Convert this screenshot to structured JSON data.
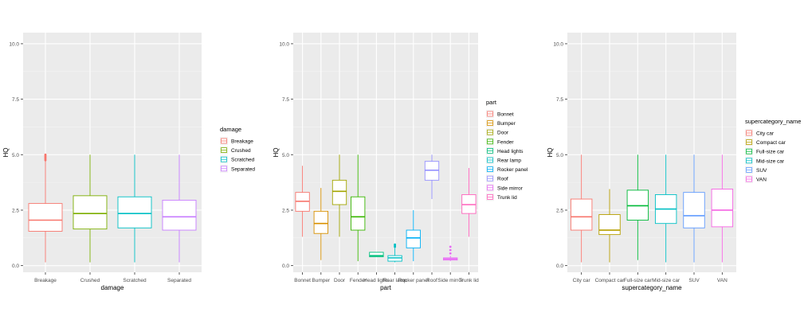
{
  "chart_data": [
    {
      "type": "boxplot",
      "xlabel": "damage",
      "ylabel": "HQ",
      "ylim": [
        -0.3,
        10.5
      ],
      "yticks": [
        "0.0",
        "2.5",
        "5.0",
        "7.5",
        "10.0"
      ],
      "ytick_values": [
        0,
        2.5,
        5,
        7.5,
        10
      ],
      "legend_title": "damage",
      "legend_position": "right",
      "categories": [
        "Breakage",
        "Crushed",
        "Scratched",
        "Separated"
      ],
      "colors": [
        "#F8766D",
        "#7CAE00",
        "#00BFC4",
        "#C77CFF"
      ],
      "boxes": [
        {
          "min": 0.15,
          "q1": 1.55,
          "median": 2.05,
          "q3": 2.8,
          "max": 4.8,
          "outliers": [
            4.75,
            4.8,
            4.85,
            4.9,
            4.95,
            5.0
          ]
        },
        {
          "min": 0.15,
          "q1": 1.65,
          "median": 2.35,
          "q3": 3.15,
          "max": 5.0,
          "outliers": []
        },
        {
          "min": 0.15,
          "q1": 1.7,
          "median": 2.35,
          "q3": 3.1,
          "max": 5.0,
          "outliers": []
        },
        {
          "min": 0.15,
          "q1": 1.6,
          "median": 2.2,
          "q3": 2.95,
          "max": 5.0,
          "outliers": []
        }
      ]
    },
    {
      "type": "boxplot",
      "xlabel": "part",
      "ylabel": "HQ",
      "ylim": [
        -0.3,
        10.5
      ],
      "yticks": [
        "0.0",
        "2.5",
        "5.0",
        "7.5",
        "10.0"
      ],
      "ytick_values": [
        0,
        2.5,
        5,
        7.5,
        10
      ],
      "legend_title": "part",
      "legend_position": "right",
      "categories": [
        "Bonnet",
        "Bumper",
        "Door",
        "Fender",
        "Head lights",
        "Rear lamp",
        "Rocker panel",
        "Roof",
        "Side mirror",
        "Trunk lid"
      ],
      "colors": [
        "#F8766D",
        "#D89000",
        "#A3A500",
        "#39B600",
        "#00BF7D",
        "#00BFC4",
        "#00B0F6",
        "#9590FF",
        "#E76BF3",
        "#FF62BC"
      ],
      "boxes": [
        {
          "min": 1.3,
          "q1": 2.45,
          "median": 2.9,
          "q3": 3.3,
          "max": 4.5,
          "outliers": []
        },
        {
          "min": 0.25,
          "q1": 1.45,
          "median": 1.9,
          "q3": 2.45,
          "max": 3.5,
          "outliers": []
        },
        {
          "min": 1.3,
          "q1": 2.75,
          "median": 3.35,
          "q3": 3.85,
          "max": 5.0,
          "outliers": []
        },
        {
          "min": 0.2,
          "q1": 1.6,
          "median": 2.2,
          "q3": 3.1,
          "max": 5.0,
          "outliers": []
        },
        {
          "min": 0.4,
          "q1": 0.4,
          "median": 0.45,
          "q3": 0.6,
          "max": 0.6,
          "outliers": []
        },
        {
          "min": 0.15,
          "q1": 0.2,
          "median": 0.35,
          "q3": 0.45,
          "max": 0.8,
          "outliers": [
            0.85,
            0.9,
            0.95
          ]
        },
        {
          "min": 0.2,
          "q1": 0.8,
          "median": 1.25,
          "q3": 1.6,
          "max": 2.5,
          "outliers": []
        },
        {
          "min": 3.0,
          "q1": 3.85,
          "median": 4.3,
          "q3": 4.7,
          "max": 5.0,
          "outliers": []
        },
        {
          "min": 0.2,
          "q1": 0.25,
          "median": 0.3,
          "q3": 0.35,
          "max": 0.45,
          "outliers": [
            0.55,
            0.7,
            0.85
          ]
        },
        {
          "min": 1.3,
          "q1": 2.35,
          "median": 2.75,
          "q3": 3.2,
          "max": 4.4,
          "outliers": []
        }
      ]
    },
    {
      "type": "boxplot",
      "xlabel": "supercategory_name",
      "ylabel": "HQ",
      "ylim": [
        -0.3,
        10.5
      ],
      "yticks": [
        "0.0",
        "2.5",
        "5.0",
        "7.5",
        "10.0"
      ],
      "ytick_values": [
        0,
        2.5,
        5,
        7.5,
        10
      ],
      "legend_title": "supercategory_name",
      "legend_position": "right",
      "categories": [
        "City car",
        "Compact car",
        "Full-size car",
        "Mid-size car",
        "SUV",
        "VAN"
      ],
      "colors": [
        "#F8766D",
        "#B79F00",
        "#00BA38",
        "#00BFC4",
        "#619CFF",
        "#F564E3"
      ],
      "boxes": [
        {
          "min": 0.15,
          "q1": 1.6,
          "median": 2.2,
          "q3": 3.0,
          "max": 5.0,
          "outliers": []
        },
        {
          "min": 0.15,
          "q1": 1.4,
          "median": 1.6,
          "q3": 2.3,
          "max": 3.45,
          "outliers": []
        },
        {
          "min": 0.25,
          "q1": 2.05,
          "median": 2.7,
          "q3": 3.4,
          "max": 5.0,
          "outliers": []
        },
        {
          "min": 0.15,
          "q1": 1.9,
          "median": 2.55,
          "q3": 3.2,
          "max": 5.0,
          "outliers": []
        },
        {
          "min": 0.15,
          "q1": 1.7,
          "median": 2.25,
          "q3": 3.3,
          "max": 5.0,
          "outliers": []
        },
        {
          "min": 0.15,
          "q1": 1.75,
          "median": 2.5,
          "q3": 3.45,
          "max": 5.0,
          "outliers": []
        }
      ]
    }
  ]
}
